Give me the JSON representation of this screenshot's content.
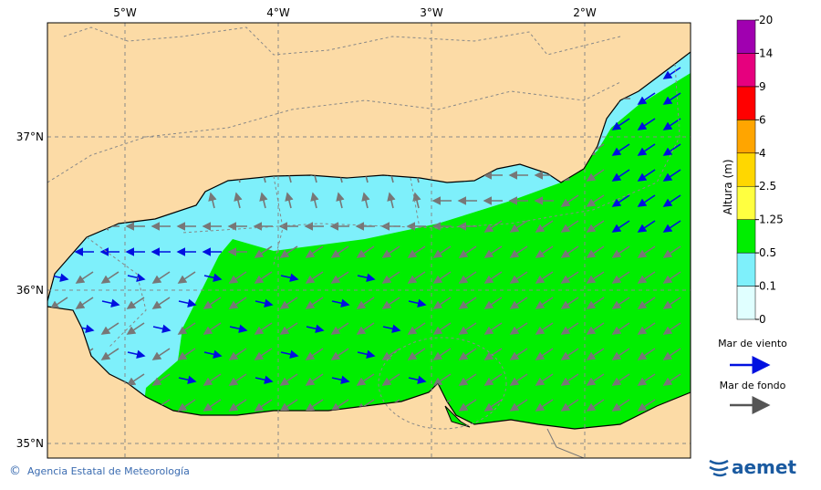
{
  "map": {
    "lon_labels": [
      "5°W",
      "4°W",
      "3°W",
      "2°W"
    ],
    "lat_labels": [
      "37°N",
      "36°N",
      "35°N"
    ]
  },
  "colorbar": {
    "title": "Altura (m)",
    "labels": [
      0,
      0.1,
      0.5,
      1.25,
      2.5,
      4,
      6,
      9,
      14,
      20
    ]
  },
  "legend": {
    "wind_sea": "Mar de viento",
    "swell": "Mar de fondo"
  },
  "footer": {
    "credit": "Agencia Estatal de Meteorología",
    "logo": "aemet",
    "copyright": "©"
  }
}
